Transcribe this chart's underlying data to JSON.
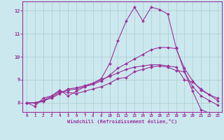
{
  "xlabel": "Windchill (Refroidissement éolien,°C)",
  "bg_color": "#cce8ef",
  "line_color": "#993399",
  "grid_color": "#aacccc",
  "xlim": [
    -0.5,
    23.5
  ],
  "ylim": [
    7.6,
    12.4
  ],
  "xticks": [
    0,
    1,
    2,
    3,
    4,
    5,
    6,
    7,
    8,
    9,
    10,
    11,
    12,
    13,
    14,
    15,
    16,
    17,
    18,
    19,
    20,
    21,
    22,
    23
  ],
  "yticks": [
    8,
    9,
    10,
    11,
    12
  ],
  "series": [
    {
      "x": [
        0,
        1,
        2,
        3,
        4,
        5,
        6,
        7,
        8,
        9,
        10,
        11,
        12,
        13,
        14,
        15,
        16,
        17,
        18,
        19,
        20,
        21,
        22,
        23
      ],
      "y": [
        8.0,
        7.85,
        8.2,
        8.3,
        8.55,
        8.3,
        8.5,
        8.7,
        8.85,
        9.05,
        9.7,
        10.7,
        11.55,
        12.15,
        11.55,
        12.15,
        12.05,
        11.85,
        10.4,
        9.35,
        8.5,
        7.7,
        7.55,
        7.5
      ]
    },
    {
      "x": [
        0,
        1,
        2,
        3,
        4,
        5,
        6,
        7,
        8,
        9,
        10,
        11,
        12,
        13,
        14,
        15,
        16,
        17,
        18,
        19,
        20,
        21,
        22,
        23
      ],
      "y": [
        8.0,
        8.0,
        8.1,
        8.3,
        8.5,
        8.45,
        8.4,
        8.5,
        8.6,
        8.7,
        8.85,
        9.05,
        9.1,
        9.35,
        9.45,
        9.55,
        9.6,
        9.55,
        9.4,
        9.35,
        8.7,
        8.3,
        8.1,
        7.9
      ]
    },
    {
      "x": [
        0,
        1,
        2,
        3,
        4,
        5,
        6,
        7,
        8,
        9,
        10,
        11,
        12,
        13,
        14,
        15,
        16,
        17,
        18,
        19,
        20,
        21,
        22,
        23
      ],
      "y": [
        8.0,
        8.0,
        8.05,
        8.25,
        8.45,
        8.55,
        8.6,
        8.7,
        8.8,
        8.95,
        9.2,
        9.5,
        9.7,
        9.9,
        10.1,
        10.3,
        10.4,
        10.4,
        10.35,
        9.5,
        8.95,
        8.55,
        8.35,
        8.2
      ]
    },
    {
      "x": [
        0,
        1,
        2,
        3,
        4,
        5,
        6,
        7,
        8,
        9,
        10,
        11,
        12,
        13,
        14,
        15,
        16,
        17,
        18,
        19,
        20,
        21,
        22,
        23
      ],
      "y": [
        8.0,
        8.0,
        8.1,
        8.2,
        8.4,
        8.6,
        8.65,
        8.75,
        8.85,
        9.0,
        9.15,
        9.3,
        9.45,
        9.55,
        9.6,
        9.65,
        9.65,
        9.6,
        9.55,
        9.0,
        8.9,
        8.6,
        8.35,
        8.1
      ]
    }
  ]
}
